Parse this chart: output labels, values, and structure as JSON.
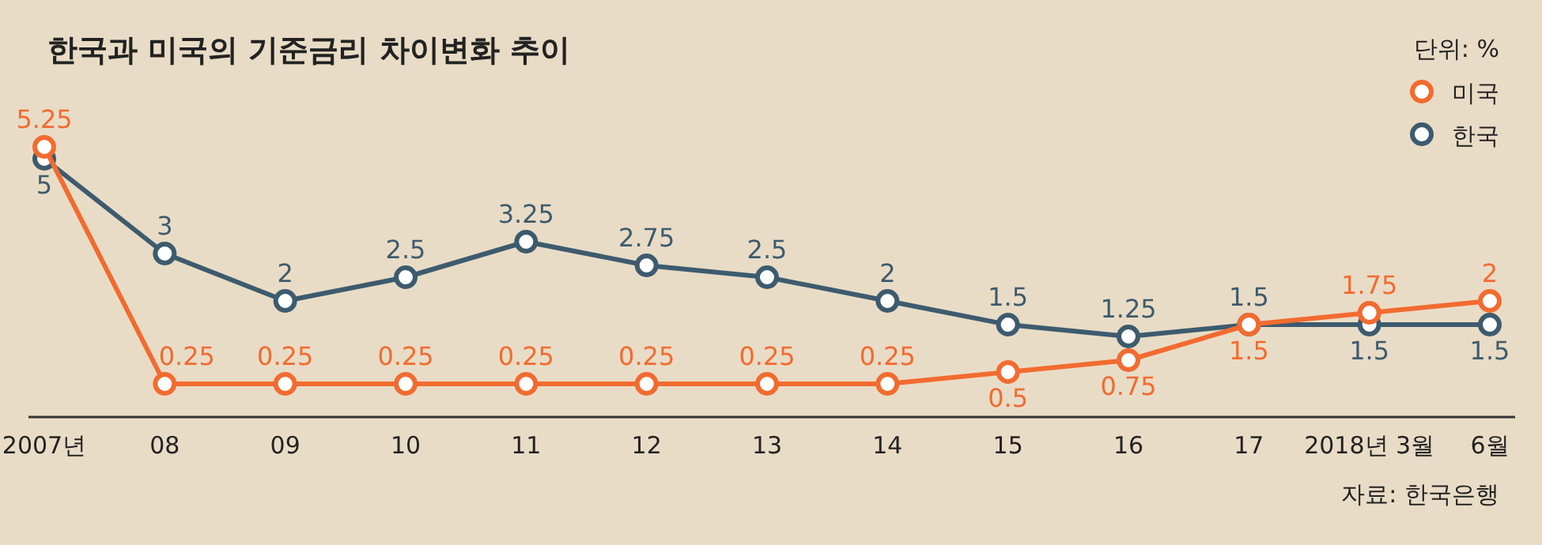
{
  "chart_data": {
    "type": "line",
    "title": "한국과 미국의 기준금리 차이변화 추이",
    "legend_title": "단위: %",
    "categories": [
      "2007년",
      "08",
      "09",
      "10",
      "11",
      "12",
      "13",
      "14",
      "15",
      "16",
      "17",
      "2018년 3월",
      "6월"
    ],
    "series": [
      {
        "name": "미국",
        "color": "#f26b30",
        "values": [
          5.25,
          0.25,
          0.25,
          0.25,
          0.25,
          0.25,
          0.25,
          0.25,
          0.5,
          0.75,
          1.5,
          1.75,
          2
        ]
      },
      {
        "name": "한국",
        "color": "#3d5b6e",
        "values": [
          5,
          3,
          2,
          2.5,
          3.25,
          2.75,
          2.5,
          2,
          1.5,
          1.25,
          1.5,
          1.5,
          1.5
        ]
      }
    ],
    "tick_labels": "x",
    "data_labels": true,
    "marker": "circle",
    "legend": "top right",
    "annotations": [
      "자료: 한국은행"
    ]
  }
}
